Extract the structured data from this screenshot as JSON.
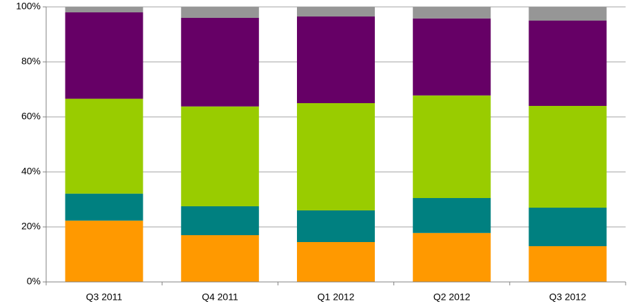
{
  "chart_data": {
    "type": "bar",
    "stacked": true,
    "grid": true,
    "categories": [
      "Q3 2011",
      "Q4 2011",
      "Q1 2012",
      "Q2 2012",
      "Q3 2012"
    ],
    "series": [
      {
        "color": "#ff9900",
        "values": [
          22.3,
          17,
          14.5,
          17.8,
          13
        ]
      },
      {
        "color": "#008080",
        "values": [
          9.8,
          10.5,
          11.5,
          12.7,
          14
        ]
      },
      {
        "color": "#99cc00",
        "values": [
          34.5,
          36.3,
          39,
          37.3,
          37
        ]
      },
      {
        "color": "#660066",
        "values": [
          31.4,
          32.2,
          31.5,
          28,
          31
        ]
      },
      {
        "color": "#969696",
        "values": [
          2,
          4,
          3.5,
          4.2,
          5
        ]
      }
    ],
    "ylim": [
      0,
      100
    ],
    "yticks": [
      {
        "value": 0,
        "label": "0%"
      },
      {
        "value": 20,
        "label": "20%"
      },
      {
        "value": 40,
        "label": "40%"
      },
      {
        "value": 60,
        "label": "60%"
      },
      {
        "value": 80,
        "label": "80%"
      },
      {
        "value": 100,
        "label": "100%"
      }
    ]
  }
}
